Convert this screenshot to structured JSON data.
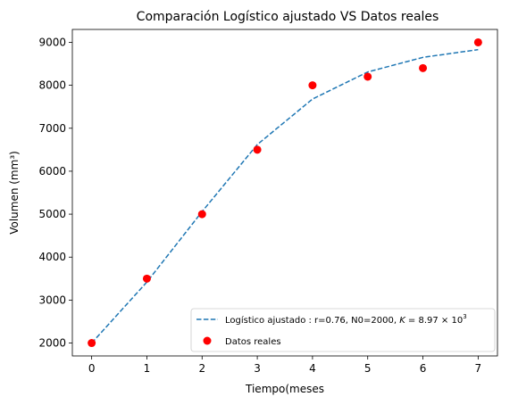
{
  "chart_data": {
    "type": "scatter",
    "title": "Comparación Logístico ajustado VS Datos reales",
    "xlabel": "Tiempo(meses",
    "ylabel": "Volumen (mm³)",
    "xlim": [
      -0.35,
      7.35
    ],
    "ylim": [
      1700,
      9300
    ],
    "xticks": [
      0,
      1,
      2,
      3,
      4,
      5,
      6,
      7
    ],
    "yticks": [
      2000,
      3000,
      4000,
      5000,
      6000,
      7000,
      8000,
      9000
    ],
    "grid": false,
    "legend_position": "bottom-right",
    "series": [
      {
        "name": "Logístico ajustado : r=0.76, N0=2000, K=8.97×10³",
        "style": "dashed-line",
        "color": "#1f77b4",
        "x": [
          0,
          1,
          2,
          3,
          4,
          5,
          6,
          7
        ],
        "y": [
          2000,
          3420,
          5060,
          6620,
          7680,
          8310,
          8650,
          8830
        ]
      },
      {
        "name": "Datos reales",
        "style": "points",
        "color": "#ff0000",
        "x": [
          0,
          1,
          2,
          3,
          4,
          5,
          6,
          7
        ],
        "y": [
          2000,
          3500,
          5000,
          6500,
          8000,
          8200,
          8400,
          9000
        ]
      }
    ],
    "legend": {
      "line_prefix": "Logístico ajustado : r=0.76, N0=2000, ",
      "line_k": "K",
      "line_eq": " = 8.97 × 10",
      "line_exp": "3",
      "points_label": "Datos reales"
    }
  }
}
